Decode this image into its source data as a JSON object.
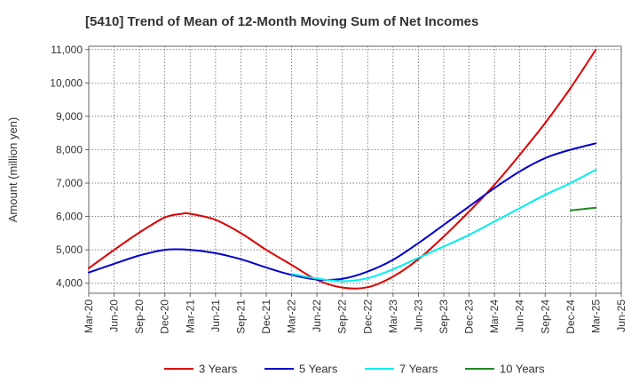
{
  "chart_data": {
    "type": "line",
    "title": "[5410]  Trend of Mean of 12-Month Moving Sum of Net Incomes",
    "xlabel": "",
    "ylabel": "Amount (million yen)",
    "x_ticks": [
      "Mar-20",
      "Jun-20",
      "Sep-20",
      "Dec-20",
      "Mar-21",
      "Jun-21",
      "Sep-21",
      "Dec-21",
      "Mar-22",
      "Jun-22",
      "Sep-22",
      "Dec-22",
      "Mar-23",
      "Jun-23",
      "Sep-23",
      "Dec-23",
      "Mar-24",
      "Jun-24",
      "Sep-24",
      "Dec-24",
      "Mar-25",
      "Jun-25"
    ],
    "y_ticks": [
      4000,
      5000,
      6000,
      7000,
      8000,
      9000,
      10000,
      11000
    ],
    "y_tick_labels": [
      "4,000",
      "5,000",
      "6,000",
      "7,000",
      "8,000",
      "9,000",
      "10,000",
      "11,000"
    ],
    "ylim": [
      3700,
      11100
    ],
    "grid": true,
    "legend_position": "bottom",
    "series": [
      {
        "name": "3 Years",
        "color": "#dd0000",
        "x": [
          "Mar-20",
          "Jun-20",
          "Sep-20",
          "Dec-20",
          "Feb-21",
          "Mar-21",
          "Jun-21",
          "Sep-21",
          "Dec-21",
          "Mar-22",
          "Jun-22",
          "Sep-22",
          "Dec-22",
          "Mar-23",
          "Jun-23",
          "Sep-23",
          "Dec-23",
          "Mar-24",
          "Jun-24",
          "Sep-24",
          "Dec-24",
          "Mar-25"
        ],
        "values": [
          4450,
          5000,
          5520,
          5970,
          6080,
          6080,
          5900,
          5500,
          5000,
          4550,
          4100,
          3870,
          3880,
          4200,
          4720,
          5400,
          6150,
          6950,
          7850,
          8800,
          9850,
          11000
        ]
      },
      {
        "name": "5 Years",
        "color": "#0000cc",
        "x": [
          "Mar-20",
          "Jun-20",
          "Sep-20",
          "Dec-20",
          "Mar-21",
          "Jun-21",
          "Sep-21",
          "Dec-21",
          "Mar-22",
          "Jun-22",
          "Sep-22",
          "Dec-22",
          "Mar-23",
          "Jun-23",
          "Sep-23",
          "Dec-23",
          "Mar-24",
          "Jun-24",
          "Sep-24",
          "Dec-24",
          "Mar-25"
        ],
        "values": [
          4320,
          4580,
          4830,
          5000,
          5000,
          4900,
          4720,
          4470,
          4250,
          4110,
          4130,
          4350,
          4700,
          5200,
          5750,
          6300,
          6850,
          7350,
          7750,
          8000,
          8190
        ]
      },
      {
        "name": "7 Years",
        "color": "#00eeee",
        "x": [
          "Mar-22",
          "Jun-22",
          "Sep-22",
          "Dec-22",
          "Mar-23",
          "Jun-23",
          "Sep-23",
          "Dec-23",
          "Mar-24",
          "Jun-24",
          "Sep-24",
          "Dec-24",
          "Mar-25"
        ],
        "values": [
          4280,
          4140,
          4060,
          4150,
          4420,
          4760,
          5100,
          5450,
          5850,
          6250,
          6650,
          7000,
          7400
        ]
      },
      {
        "name": "10 Years",
        "color": "#228822",
        "x": [
          "Dec-24",
          "Mar-25"
        ],
        "values": [
          6180,
          6260
        ]
      }
    ]
  }
}
